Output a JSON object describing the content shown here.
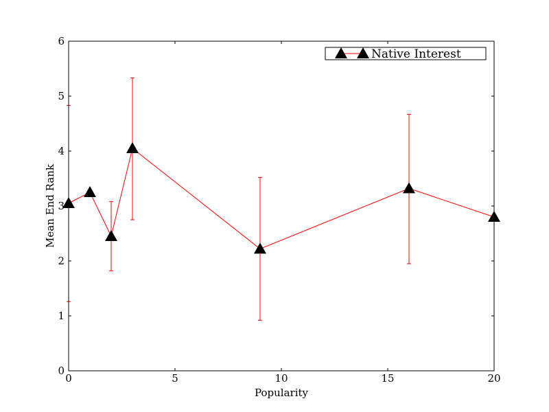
{
  "chart_data": {
    "type": "line",
    "xlabel": "Popularity",
    "ylabel": "Mean End Rank",
    "xlim": [
      0,
      20
    ],
    "ylim": [
      0,
      6
    ],
    "xticks": [
      0,
      5,
      10,
      15,
      20
    ],
    "yticks": [
      0,
      1,
      2,
      3,
      4,
      5,
      6
    ],
    "xtick_labels": [
      "0",
      "5",
      "10",
      "15",
      "20"
    ],
    "ytick_labels": [
      "0",
      "1",
      "2",
      "3",
      "4",
      "5",
      "6"
    ],
    "grid": false,
    "legend_position": "top-right",
    "series": [
      {
        "name": "Native Interest",
        "color": "#ff0000",
        "marker": "triangle",
        "marker_color": "#000000",
        "x": [
          0,
          1,
          2,
          3,
          9,
          16,
          20
        ],
        "y": [
          3.05,
          3.25,
          2.45,
          4.05,
          2.22,
          3.32,
          2.8
        ],
        "err_low": [
          1.26,
          null,
          1.82,
          2.75,
          0.92,
          1.95,
          null
        ],
        "err_high": [
          4.83,
          null,
          3.08,
          5.33,
          3.52,
          4.67,
          null
        ]
      }
    ]
  }
}
